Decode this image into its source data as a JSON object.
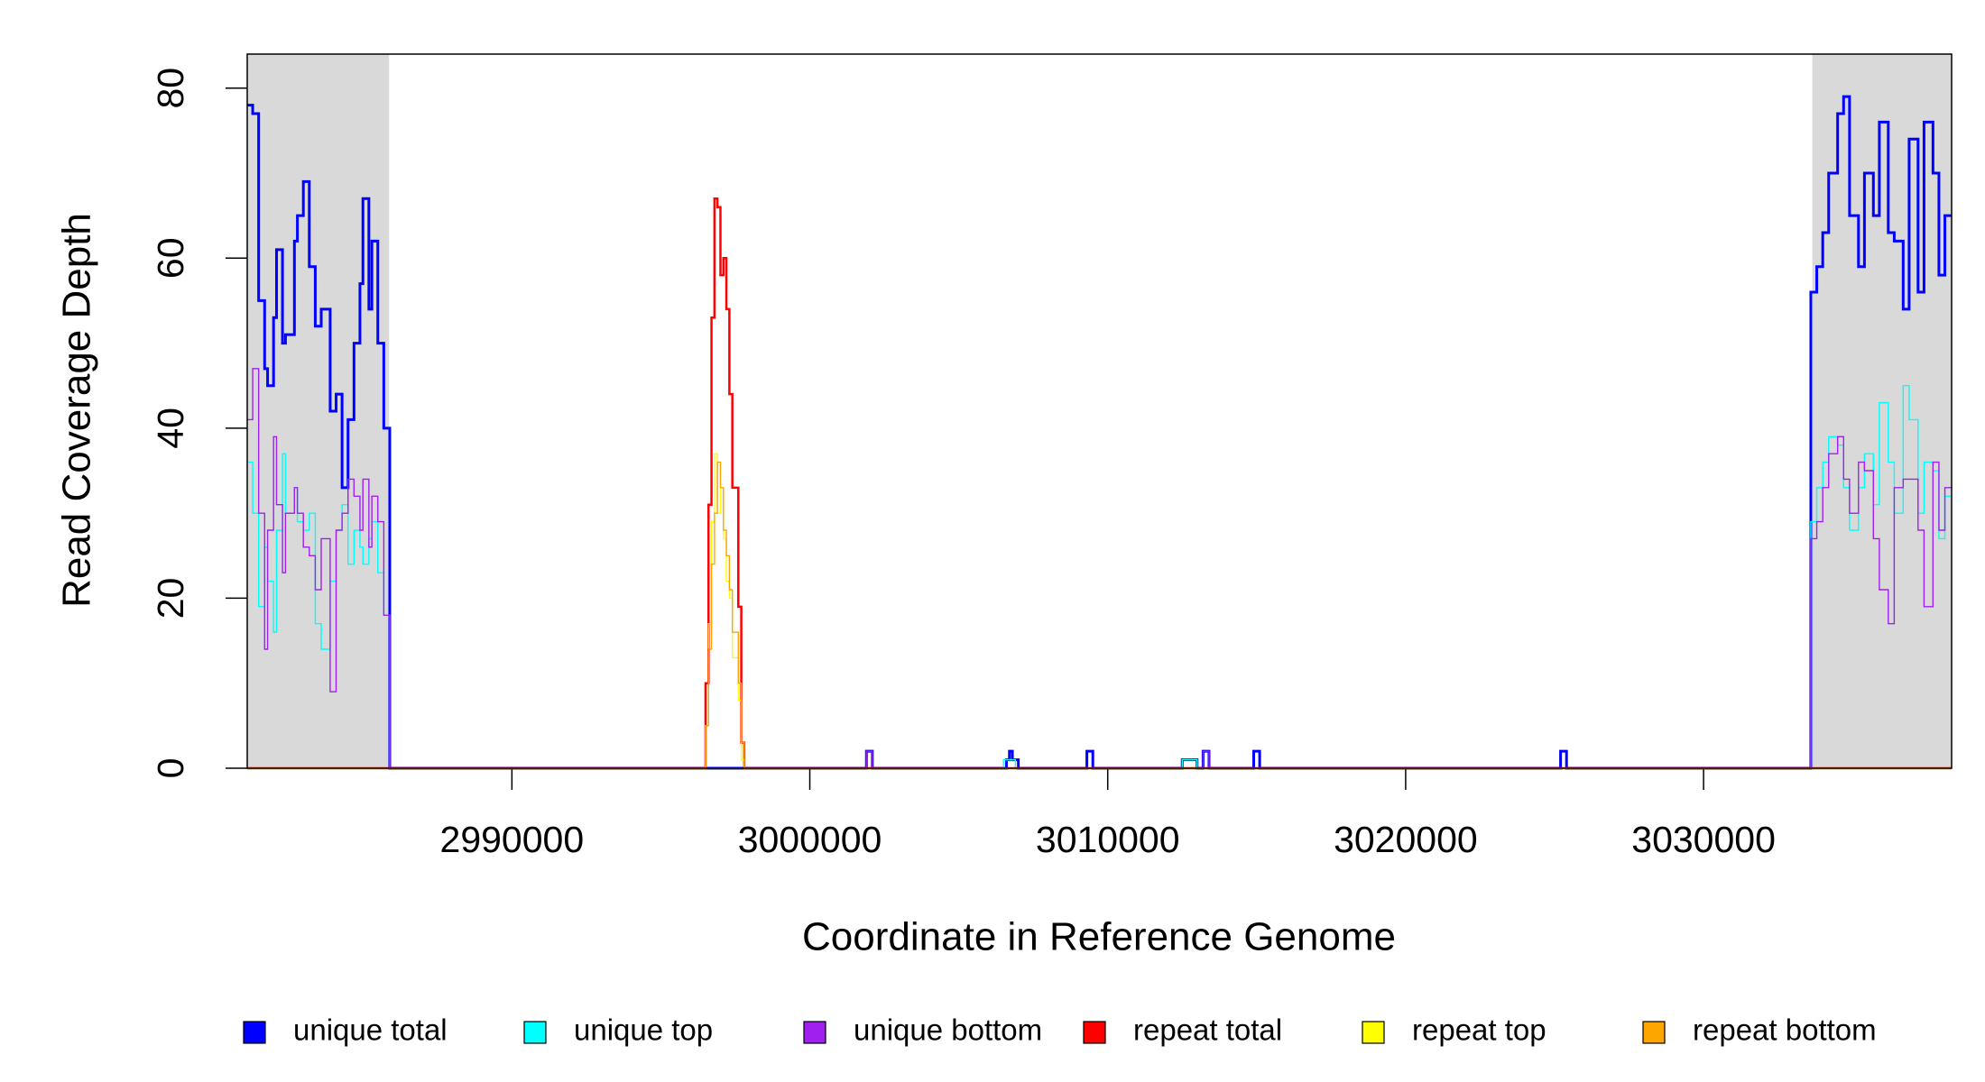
{
  "chart_data": {
    "type": "step",
    "x_label": "Coordinate in Reference Genome",
    "y_label": "Read Coverage Depth",
    "xlim": [
      2981116,
      3038326
    ],
    "ylim": [
      0,
      84
    ],
    "xticks": [
      2990000,
      3000000,
      3010000,
      3020000,
      3030000
    ],
    "yticks": [
      0,
      20,
      40,
      60,
      80
    ],
    "shaded_regions": [
      [
        2981116,
        2985880
      ],
      [
        3033650,
        3038326
      ]
    ],
    "shade_color": "#d9d9d9",
    "legend": "bottom",
    "series": [
      {
        "name": "unique total",
        "color": "#0000ff",
        "width": 3,
        "x": [
          2981100,
          2981300,
          2981500,
          2981700,
          2981800,
          2982000,
          2982100,
          2982300,
          2982400,
          2982700,
          2982800,
          2983000,
          2983200,
          2983400,
          2983600,
          2983900,
          2984100,
          2984300,
          2984500,
          2984700,
          2984900,
          2985000,
          2985200,
          2985300,
          2985500,
          2985700,
          2985900,
          3001900,
          3002100,
          3006600,
          3006700,
          3006800,
          3007000,
          3009300,
          3009500,
          3012500,
          3013000,
          3013200,
          3013400,
          3014900,
          3015100,
          3025200,
          3025400,
          3033600,
          3033800,
          3034000,
          3034200,
          3034500,
          3034700,
          3034900,
          3035200,
          3035400,
          3035700,
          3035900,
          3036200,
          3036400,
          3036700,
          3036900,
          3037200,
          3037400,
          3037700,
          3037900,
          3038100
        ],
        "values": [
          78,
          77,
          55,
          47,
          45,
          53,
          61,
          50,
          51,
          62,
          65,
          69,
          59,
          52,
          54,
          42,
          44,
          33,
          41,
          50,
          57,
          67,
          54,
          62,
          50,
          40,
          0,
          2,
          0,
          1,
          2,
          1,
          0,
          2,
          0,
          1,
          0,
          2,
          0,
          2,
          0,
          2,
          0,
          56,
          59,
          63,
          70,
          77,
          79,
          65,
          59,
          70,
          65,
          76,
          63,
          62,
          54,
          74,
          56,
          76,
          70,
          58,
          65
        ]
      },
      {
        "name": "unique top",
        "color": "#00ffff",
        "width": 1.4,
        "x": [
          2981100,
          2981300,
          2981500,
          2981700,
          2981800,
          2982000,
          2982100,
          2982300,
          2982400,
          2982700,
          2982800,
          2983000,
          2983200,
          2983400,
          2983600,
          2983900,
          2984100,
          2984300,
          2984500,
          2984700,
          2984900,
          2985000,
          2985200,
          2985300,
          2985500,
          2985700,
          2985900,
          3006500,
          3006900,
          3012500,
          3013000,
          3033600,
          3033800,
          3034000,
          3034200,
          3034500,
          3034700,
          3034900,
          3035200,
          3035400,
          3035700,
          3035900,
          3036200,
          3036400,
          3036700,
          3036900,
          3037200,
          3037400,
          3037700,
          3037900,
          3038100
        ],
        "values": [
          36,
          30,
          19,
          26,
          22,
          16,
          28,
          37,
          30,
          33,
          29,
          28,
          30,
          17,
          14,
          22,
          28,
          31,
          24,
          28,
          26,
          24,
          27,
          29,
          23,
          18,
          0,
          1,
          0,
          1,
          0,
          29,
          33,
          36,
          39,
          38,
          33,
          28,
          33,
          37,
          31,
          43,
          36,
          30,
          45,
          41,
          30,
          36,
          35,
          27,
          32
        ]
      },
      {
        "name": "unique bottom",
        "color": "#a020f0",
        "width": 1.4,
        "x": [
          2981100,
          2981300,
          2981500,
          2981700,
          2981800,
          2982000,
          2982100,
          2982300,
          2982400,
          2982700,
          2982800,
          2983000,
          2983200,
          2983400,
          2983600,
          2983900,
          2984100,
          2984300,
          2984500,
          2984700,
          2984900,
          2985000,
          2985200,
          2985300,
          2985500,
          2985700,
          2985900,
          3001900,
          3002100,
          3013200,
          3013400,
          3033600,
          3033800,
          3034000,
          3034200,
          3034500,
          3034700,
          3034900,
          3035200,
          3035400,
          3035700,
          3035900,
          3036200,
          3036400,
          3036700,
          3036900,
          3037200,
          3037400,
          3037700,
          3037900,
          3038100
        ],
        "values": [
          41,
          47,
          30,
          14,
          28,
          39,
          31,
          23,
          30,
          33,
          30,
          26,
          25,
          21,
          27,
          9,
          28,
          30,
          34,
          32,
          28,
          34,
          26,
          32,
          29,
          18,
          0,
          2,
          0,
          2,
          0,
          27,
          29,
          33,
          37,
          39,
          34,
          30,
          36,
          35,
          27,
          21,
          17,
          33,
          34,
          34,
          28,
          19,
          36,
          28,
          33
        ]
      },
      {
        "name": "repeat total",
        "color": "#ff0000",
        "width": 2.5,
        "x": [
          2981100,
          2996500,
          2996600,
          2996700,
          2996800,
          2996900,
          2997000,
          2997100,
          2997200,
          2997300,
          2997400,
          2997600,
          2997700,
          2997800
        ],
        "values": [
          0,
          10,
          31,
          53,
          67,
          66,
          58,
          60,
          54,
          44,
          33,
          19,
          3,
          0
        ]
      },
      {
        "name": "repeat top",
        "color": "#ffff00",
        "width": 1.4,
        "x": [
          2981100,
          2996500,
          2996600,
          2996700,
          2996800,
          2996900,
          2997000,
          2997100,
          2997200,
          2997300,
          2997400,
          2997600,
          2997700,
          2997800
        ],
        "values": [
          0,
          5,
          17,
          29,
          37,
          30,
          33,
          27,
          22,
          20,
          13,
          8,
          1,
          0
        ]
      },
      {
        "name": "repeat bottom",
        "color": "#ffa500",
        "width": 1.4,
        "x": [
          2981100,
          2996500,
          2996600,
          2996700,
          2996800,
          2996900,
          2997000,
          2997100,
          2997200,
          2997300,
          2997400,
          2997600,
          2997700,
          2997800
        ],
        "values": [
          0,
          5,
          14,
          24,
          30,
          36,
          33,
          28,
          25,
          21,
          16,
          10,
          3,
          0
        ]
      }
    ]
  }
}
